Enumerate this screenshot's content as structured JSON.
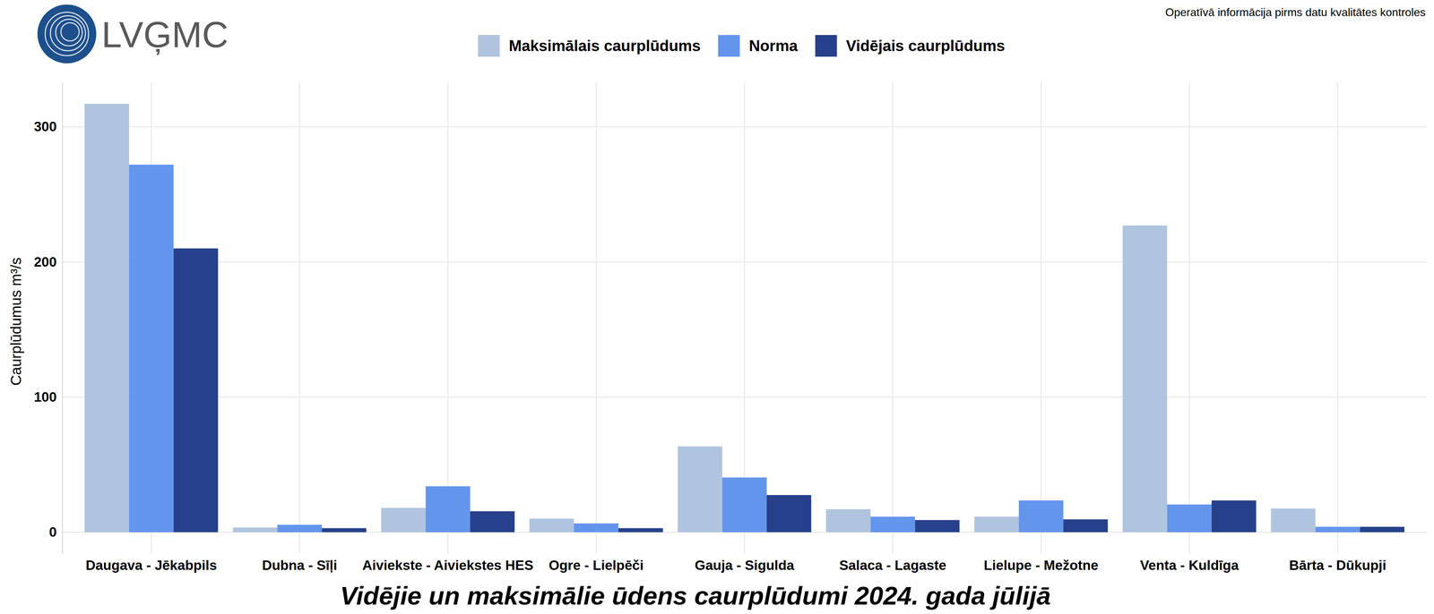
{
  "chart_data": {
    "type": "bar",
    "title": "Vidējie un maksimālie ūdens caurplūdumi 2024. gada jūlijā",
    "logo_text": "LVĢMC",
    "note": "Operatīvā informācija pirms datu kvalitātes kontroles",
    "y_label": "Caurplūdumus  m³/s",
    "categories": [
      "Daugava - Jēkabpils",
      "Dubna - Sīļi",
      "Aiviekste - Aiviekstes HES",
      "Ogre - Lielpēči",
      "Gauja - Sigulda",
      "Salaca - Lagaste",
      "Lielupe - Mežotne",
      "Venta - Kuldīga",
      "Bārta - Dūkupji"
    ],
    "series": [
      {
        "name": "Maksimālais caurplūdums",
        "color": "#b0c4de",
        "values": [
          317,
          3.5,
          18,
          10,
          63.5,
          17,
          11.5,
          227,
          17.5
        ]
      },
      {
        "name": "Norma",
        "color": "#6495ed",
        "values": [
          272,
          5.5,
          34,
          6.5,
          40.5,
          11.5,
          23.5,
          20.5,
          4
        ]
      },
      {
        "name": "Vidējais caurplūdums",
        "color": "#27408b",
        "values": [
          210,
          3,
          15.5,
          3,
          27.5,
          9,
          9.5,
          23.5,
          4
        ]
      }
    ],
    "ylim": [
      -16,
      333
    ],
    "yticks": [
      0,
      100,
      200,
      300
    ],
    "grid": true,
    "legend": "top"
  }
}
